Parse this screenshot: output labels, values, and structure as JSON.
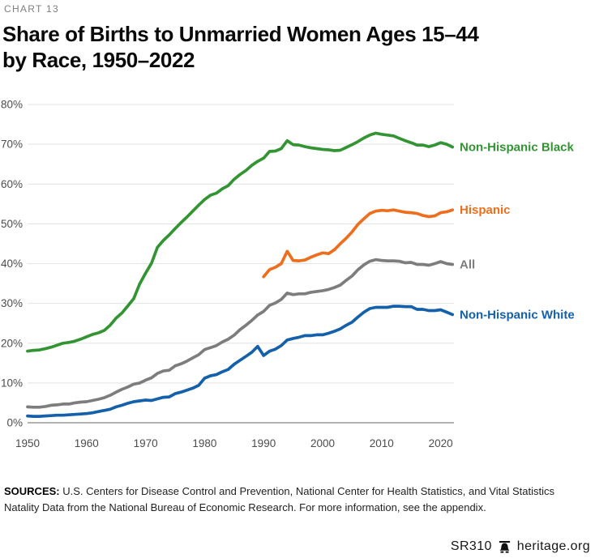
{
  "kicker": "CHART 13",
  "title": {
    "line1": "Share of Births to Unmarried Women Ages 15–44",
    "line2": "by Race, 1950–2022"
  },
  "chart_data": {
    "type": "line",
    "title": "Share of Births to Unmarried Women Ages 15–44 by Race, 1950–2022",
    "xlabel": "",
    "ylabel": "",
    "x_range": [
      1950,
      2022
    ],
    "ylim": [
      0,
      80
    ],
    "grid": true,
    "legend_position": "right-end-labels",
    "yticks": [
      0,
      10,
      20,
      30,
      40,
      50,
      60,
      70,
      80
    ],
    "ytick_suffix": "%",
    "xticks": [
      1950,
      1960,
      1970,
      1980,
      1990,
      2000,
      2010,
      2020
    ],
    "series": [
      {
        "id": "non-hispanic-black",
        "name": "Non-Hispanic Black",
        "color": "#339433",
        "start_year": 1950,
        "values": [
          18.0,
          18.2,
          18.3,
          18.6,
          19.0,
          19.5,
          20.0,
          20.2,
          20.5,
          21.0,
          21.6,
          22.2,
          22.6,
          23.2,
          24.5,
          26.3,
          27.6,
          29.4,
          31.2,
          34.9,
          37.6,
          40.1,
          44.1,
          45.8,
          47.2,
          48.8,
          50.3,
          51.7,
          53.2,
          54.7,
          56.1,
          57.2,
          57.7,
          58.8,
          59.6,
          61.2,
          62.4,
          63.4,
          64.7,
          65.7,
          66.5,
          68.2,
          68.3,
          68.9,
          70.9,
          69.9,
          69.8,
          69.4,
          69.1,
          68.9,
          68.7,
          68.6,
          68.4,
          68.5,
          69.2,
          69.9,
          70.7,
          71.6,
          72.3,
          72.8,
          72.5,
          72.3,
          72.1,
          71.5,
          70.9,
          70.4,
          69.8,
          69.8,
          69.4,
          69.8,
          70.4,
          70.0,
          69.3
        ]
      },
      {
        "id": "hispanic",
        "name": "Hispanic",
        "color": "#ED6F1E",
        "start_year": 1990,
        "values": [
          36.7,
          38.5,
          39.1,
          40.0,
          43.1,
          40.8,
          40.7,
          40.9,
          41.6,
          42.2,
          42.7,
          42.5,
          43.5,
          45.0,
          46.4,
          48.0,
          49.9,
          51.3,
          52.6,
          53.2,
          53.4,
          53.3,
          53.5,
          53.2,
          52.9,
          52.8,
          52.6,
          52.1,
          51.8,
          52.0,
          52.8,
          53.0,
          53.5
        ]
      },
      {
        "id": "all",
        "name": "All",
        "color": "#7D7D7D",
        "start_year": 1950,
        "values": [
          4.0,
          3.9,
          3.9,
          4.1,
          4.4,
          4.5,
          4.7,
          4.7,
          5.0,
          5.2,
          5.3,
          5.6,
          5.9,
          6.3,
          6.9,
          7.7,
          8.4,
          9.0,
          9.7,
          10.0,
          10.7,
          11.3,
          12.4,
          13.0,
          13.2,
          14.3,
          14.8,
          15.5,
          16.3,
          17.1,
          18.4,
          18.9,
          19.4,
          20.3,
          21.0,
          22.0,
          23.4,
          24.5,
          25.7,
          27.1,
          28.0,
          29.5,
          30.1,
          31.0,
          32.6,
          32.2,
          32.4,
          32.4,
          32.8,
          33.0,
          33.2,
          33.5,
          34.0,
          34.6,
          35.8,
          36.9,
          38.5,
          39.7,
          40.6,
          41.0,
          40.8,
          40.7,
          40.7,
          40.6,
          40.2,
          40.3,
          39.8,
          39.8,
          39.6,
          40.0,
          40.5,
          40.0,
          39.8
        ]
      },
      {
        "id": "non-hispanic-white",
        "name": "Non-Hispanic White",
        "color": "#1460AA",
        "start_year": 1950,
        "values": [
          1.7,
          1.6,
          1.6,
          1.7,
          1.8,
          1.9,
          1.9,
          2.0,
          2.1,
          2.2,
          2.3,
          2.5,
          2.8,
          3.1,
          3.4,
          4.0,
          4.4,
          4.9,
          5.3,
          5.5,
          5.7,
          5.6,
          6.0,
          6.4,
          6.5,
          7.3,
          7.7,
          8.2,
          8.7,
          9.4,
          11.2,
          11.8,
          12.1,
          12.8,
          13.4,
          14.7,
          15.7,
          16.7,
          17.7,
          19.2,
          16.9,
          18.0,
          18.5,
          19.4,
          20.8,
          21.2,
          21.5,
          21.9,
          21.9,
          22.1,
          22.1,
          22.5,
          23.0,
          23.6,
          24.5,
          25.3,
          26.6,
          27.8,
          28.7,
          29.0,
          29.0,
          29.0,
          29.3,
          29.3,
          29.2,
          29.2,
          28.5,
          28.5,
          28.2,
          28.2,
          28.4,
          27.8,
          27.2
        ]
      }
    ],
    "style": {
      "grid_color": "#E3E5E6",
      "axis_color": "#97999B",
      "tick_label_color": "#4C4C4C"
    }
  },
  "sources": {
    "label": "SOURCES:",
    "line1": "U.S. Centers for Disease Control and Prevention, National Center for Health Statistics, and Vital Statistics",
    "line2": "Natality Data from the National Bureau of Economic Research. For more information, see the appendix."
  },
  "footer": {
    "report_id": "SR310",
    "site": "heritage.org",
    "logo_icon": "liberty-bell-icon"
  }
}
